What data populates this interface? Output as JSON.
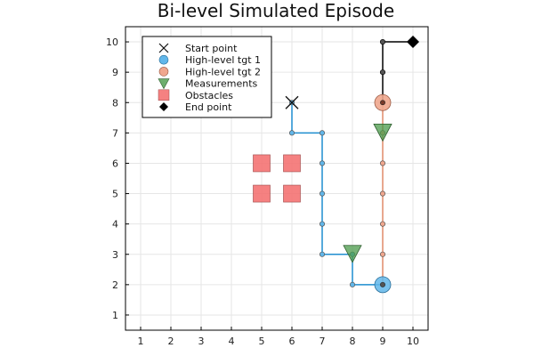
{
  "chart_data": {
    "type": "scatter",
    "title": "Bi-level Simulated Episode",
    "xlabel": "",
    "ylabel": "",
    "xlim": [
      0.5,
      10.5
    ],
    "ylim": [
      0.5,
      10.5
    ],
    "xticks": [
      1,
      2,
      3,
      4,
      5,
      6,
      7,
      8,
      9,
      10
    ],
    "yticks": [
      1,
      2,
      3,
      4,
      5,
      6,
      7,
      8,
      9,
      10
    ],
    "grid": true,
    "legend_position": "top-left",
    "colors": {
      "path1": "#1f8ed0",
      "path2": "#e08a6a",
      "tgt1": "#62b7ea",
      "tgt2": "#f0a78e",
      "measurement": "#4a9a4a",
      "obstacle": "#f36b6b",
      "black": "#000000",
      "grey": "#555555"
    },
    "legend": [
      {
        "label": "Start point",
        "marker": "x"
      },
      {
        "label": "High-level tgt 1",
        "marker": "circle-blue"
      },
      {
        "label": "High-level tgt 2",
        "marker": "circle-orange"
      },
      {
        "label": "Measurements",
        "marker": "triangle"
      },
      {
        "label": "Obstacles",
        "marker": "square"
      },
      {
        "label": "End point",
        "marker": "diamond"
      }
    ],
    "series": [
      {
        "segment": "path-to-tgt-1",
        "points": [
          [
            6,
            8
          ],
          [
            6,
            7
          ],
          [
            7,
            7
          ],
          [
            7,
            6
          ],
          [
            7,
            5
          ],
          [
            7,
            4
          ],
          [
            7,
            3
          ],
          [
            8,
            3
          ],
          [
            8,
            2
          ],
          [
            9,
            2
          ]
        ]
      },
      {
        "segment": "path-to-tgt-2",
        "points": [
          [
            9,
            2
          ],
          [
            9,
            3
          ],
          [
            9,
            4
          ],
          [
            9,
            5
          ],
          [
            9,
            6
          ],
          [
            9,
            7
          ],
          [
            9,
            8
          ]
        ]
      },
      {
        "segment": "path-to-end",
        "points": [
          [
            9,
            8
          ],
          [
            9,
            9
          ],
          [
            9,
            10
          ],
          [
            10,
            10
          ]
        ]
      }
    ],
    "start_point": [
      6,
      8
    ],
    "end_point": [
      10,
      10
    ],
    "high_level_targets_1": [
      [
        9,
        2
      ]
    ],
    "high_level_targets_2": [
      [
        9,
        8
      ]
    ],
    "measurements": [
      [
        8,
        3
      ],
      [
        9,
        7
      ]
    ],
    "obstacles": [
      [
        5,
        6
      ],
      [
        6,
        6
      ],
      [
        5,
        5
      ],
      [
        6,
        5
      ]
    ]
  }
}
